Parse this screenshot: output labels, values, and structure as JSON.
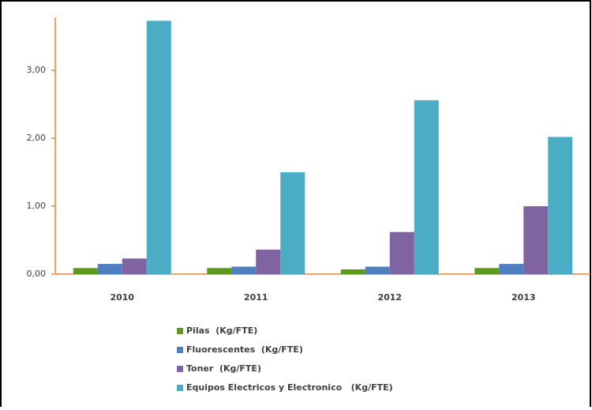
{
  "chart_data": {
    "type": "bar",
    "categories": [
      "2010",
      "2011",
      "2012",
      "2013"
    ],
    "series": [
      {
        "name": "Pilas  (Kg/FTE)",
        "color": "#5e9a1a",
        "values": [
          0.09,
          0.09,
          0.07,
          0.09
        ]
      },
      {
        "name": "Fluorescentes  (Kg/FTE)",
        "color": "#4f7fbf",
        "values": [
          0.15,
          0.11,
          0.11,
          0.15
        ]
      },
      {
        "name": "Toner  (Kg/FTE)",
        "color": "#8064a2",
        "values": [
          0.23,
          0.36,
          0.62,
          1.0
        ]
      },
      {
        "name": "Equipos Electricos y Electronico   (Kg/FTE)",
        "color": "#4bacc6",
        "values": [
          3.73,
          1.5,
          2.56,
          2.02
        ]
      }
    ],
    "ylim": [
      0,
      3.78
    ],
    "yticks": [
      {
        "value": 0,
        "label": "0,00"
      },
      {
        "value": 1,
        "label": "1,00"
      },
      {
        "value": 2,
        "label": "2,00"
      },
      {
        "value": 3,
        "label": "3,00"
      }
    ],
    "grid": false,
    "legend": "bottom"
  }
}
